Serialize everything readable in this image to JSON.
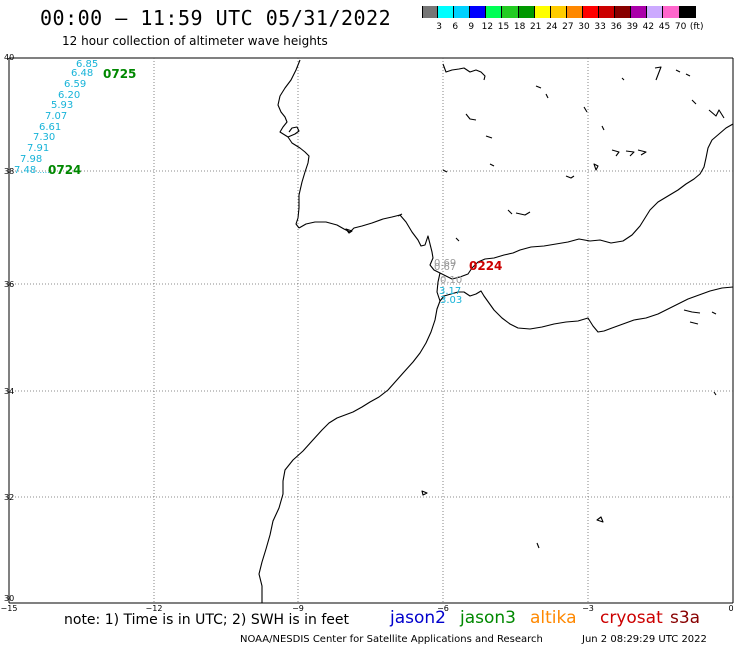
{
  "header": {
    "title": "00:00 – 11:59 UTC 05/31/2022",
    "subtitle": "12 hour collection of altimeter wave heights"
  },
  "colorbar": {
    "colors": [
      "#777777",
      "#00ffff",
      "#00d2ff",
      "#0000ff",
      "#00ff55",
      "#22cc22",
      "#009900",
      "#ffff00",
      "#ffcc00",
      "#ff8800",
      "#ff0000",
      "#cc0000",
      "#880000",
      "#aa00aa",
      "#ccaaff",
      "#ff66cc",
      "#000000"
    ],
    "labels": [
      "3",
      "6",
      "9",
      "12",
      "15",
      "18",
      "21",
      "24",
      "27",
      "30",
      "33",
      "36",
      "39",
      "42",
      "45",
      "70",
      "(ft)"
    ]
  },
  "axes": {
    "lon_labels": [
      "−15",
      "−12",
      "−9",
      "−6",
      "−3",
      "0"
    ],
    "lat_labels": [
      "40",
      "38",
      "36",
      "34",
      "32",
      "30"
    ]
  },
  "tracks": {
    "northwest": {
      "color": "#17b3d8",
      "values": [
        "6.85",
        "6.48",
        "6.59",
        "6.20",
        "5.93",
        "7.07",
        "6.61",
        "7.30",
        "7.91",
        "7.98",
        "7.48"
      ],
      "time_top": "0725",
      "time_bottom": "0724",
      "time_color": "#008800"
    },
    "strait": {
      "gray_values": [
        "0.69",
        "0.67",
        "0.10"
      ],
      "cyan_values": [
        "3.17",
        "3.03"
      ],
      "gray_color": "#999999",
      "cyan_color": "#17b3d8",
      "time": "0224",
      "time_color": "#cc0000"
    }
  },
  "footer": {
    "note": "note:  1) Time is in UTC;  2) SWH is in feet",
    "missions": [
      {
        "name": "jason2",
        "color": "#0000cc"
      },
      {
        "name": "jason3",
        "color": "#008800"
      },
      {
        "name": "altika",
        "color": "#ff8800"
      },
      {
        "name": "cryosat",
        "color": "#cc0000"
      },
      {
        "name": "s3a",
        "color": "#880000"
      }
    ],
    "credit": "NOAA/NESDIS Center for Satellite Applications and Research",
    "timestamp": "Jun  2 08:29:29 UTC 2022"
  }
}
